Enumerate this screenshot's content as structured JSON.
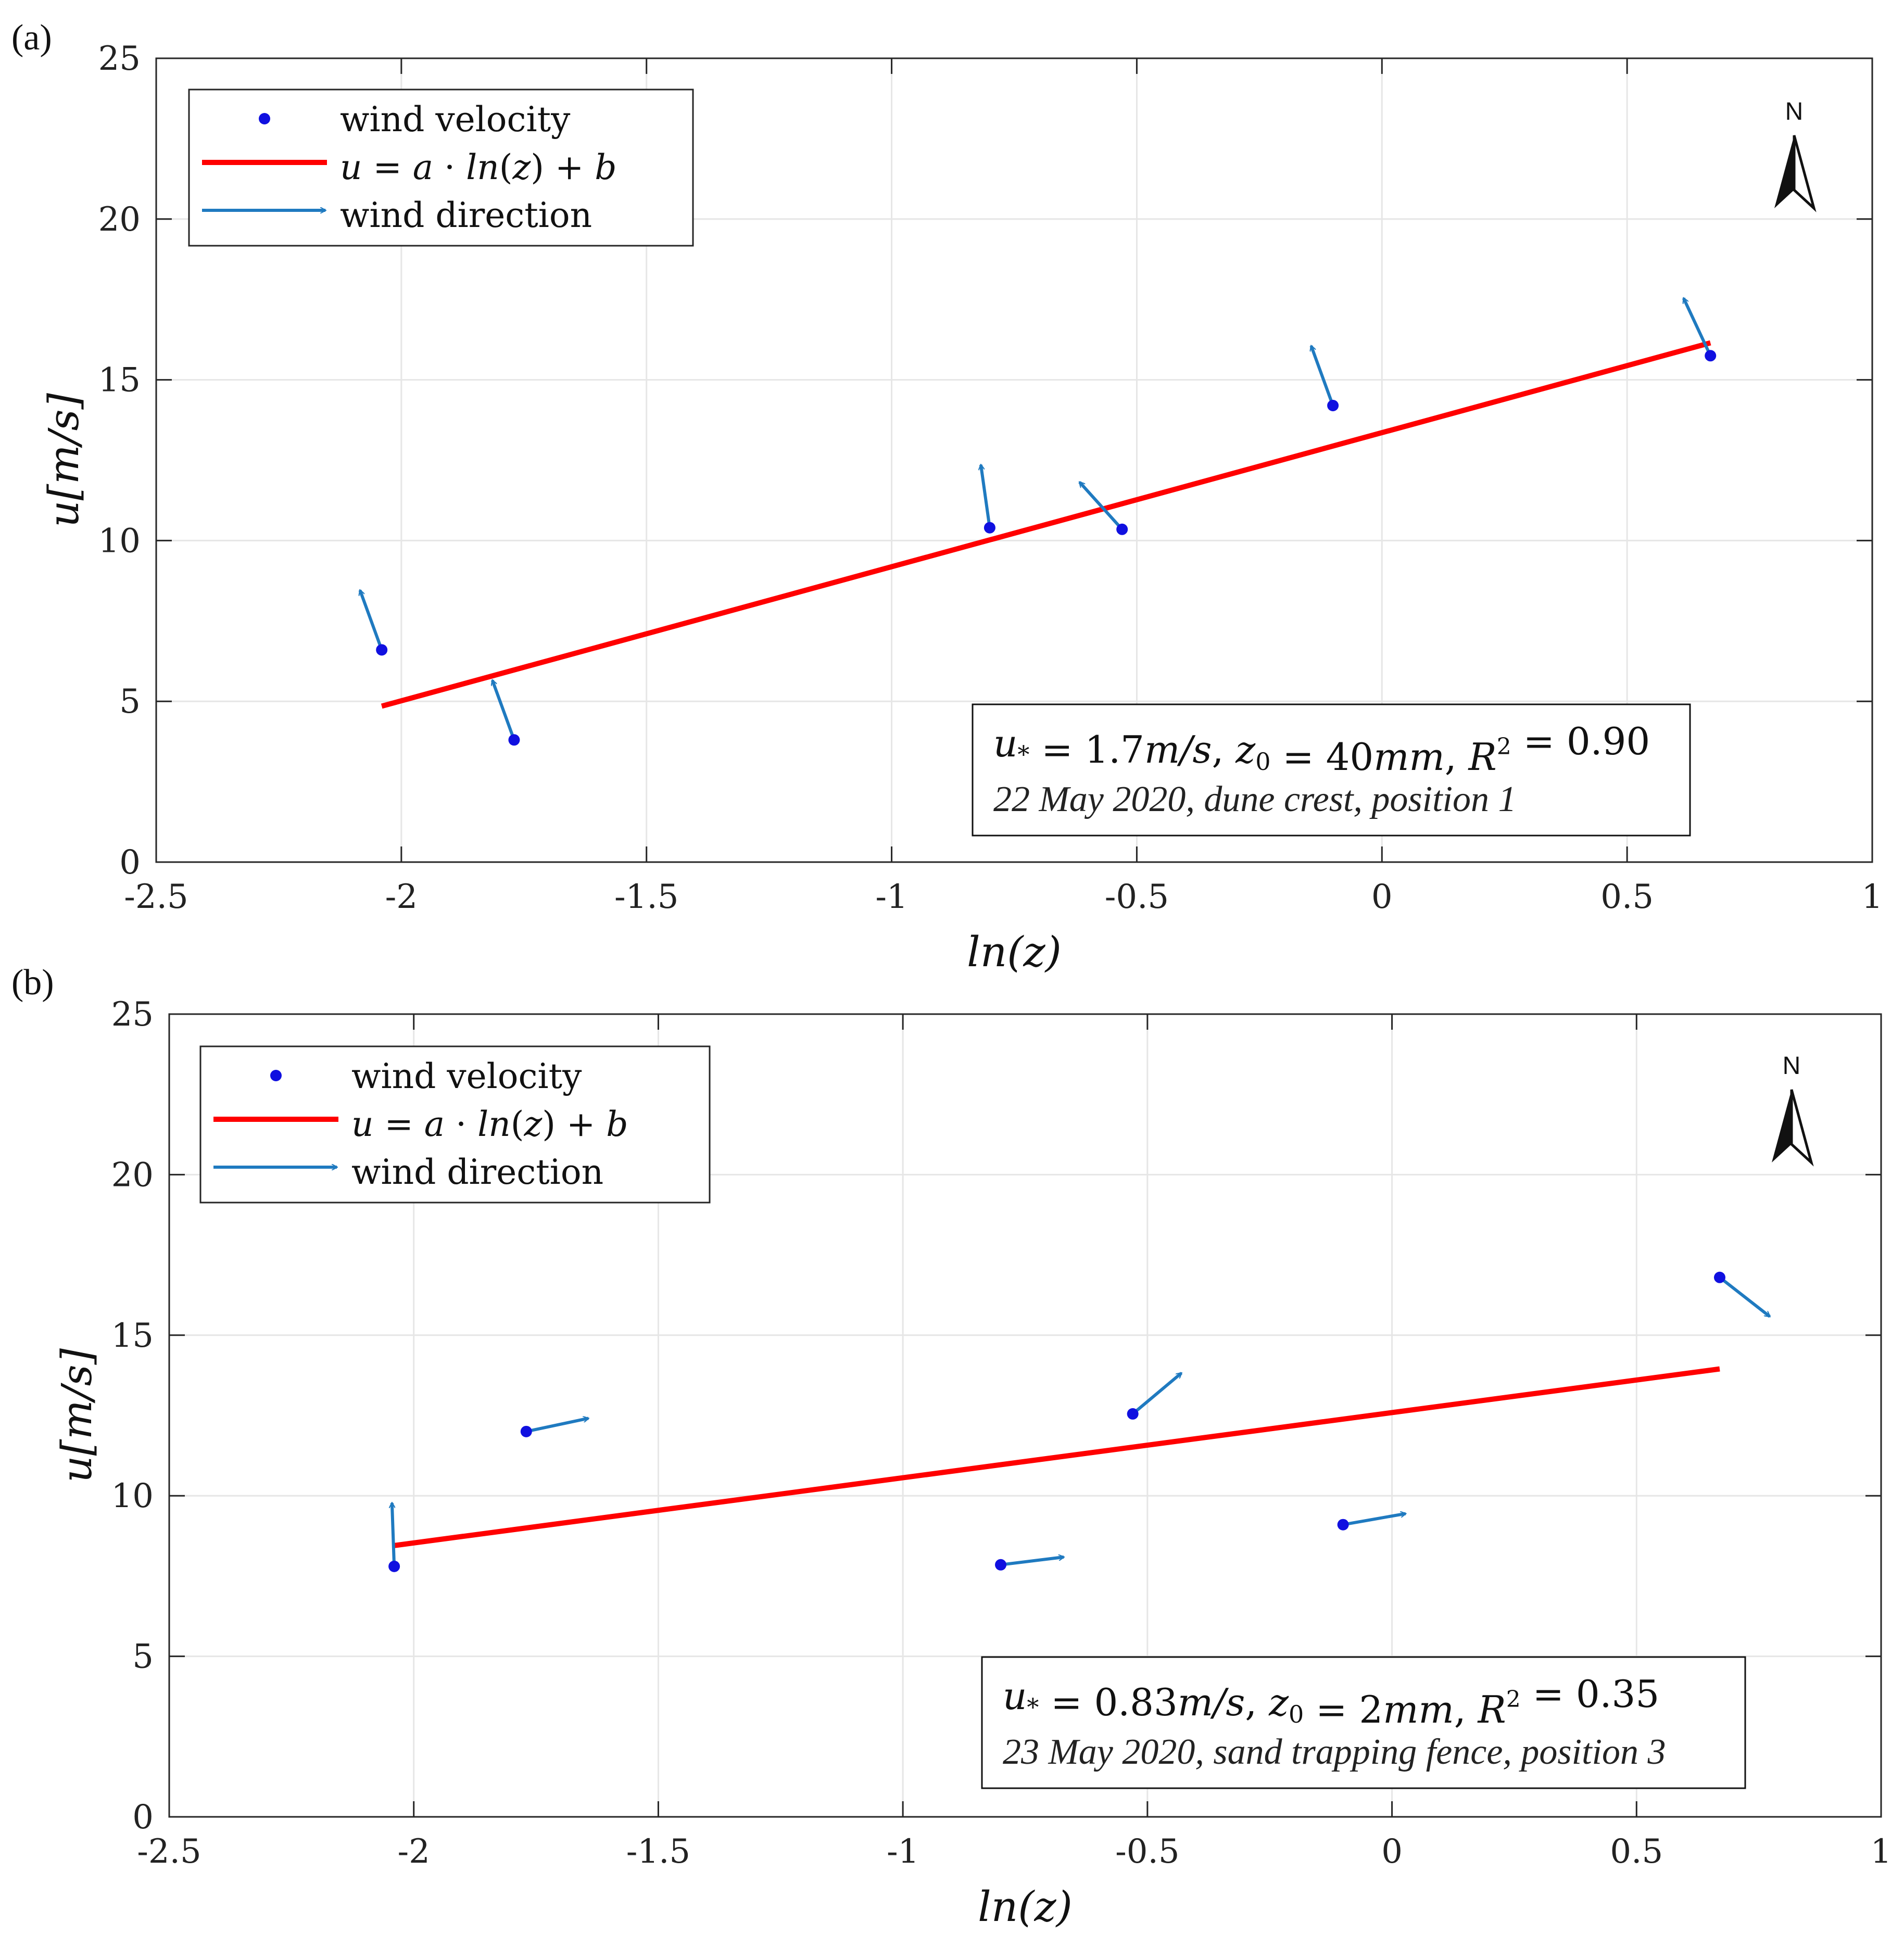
{
  "chart_data": [
    {
      "type": "scatter",
      "panel_label": "(a)",
      "xlabel": "ln(z)",
      "ylabel": "u[m/s]",
      "xlim": [
        -2.5,
        1
      ],
      "ylim": [
        0,
        25
      ],
      "xticks": [
        -2.5,
        -2,
        -1.5,
        -1,
        -0.5,
        0,
        0.5,
        1
      ],
      "xtick_labels": [
        "-2.5",
        "-2",
        "-1.5",
        "-1",
        "-0.5",
        "0",
        "0.5",
        "1"
      ],
      "yticks": [
        0,
        5,
        10,
        15,
        20,
        25
      ],
      "ytick_labels": [
        "0",
        "5",
        "10",
        "15",
        "20",
        "25"
      ],
      "grid": true,
      "legend": {
        "placement": "top-left",
        "entries": [
          "wind velocity",
          "u = a · ln(z) + b",
          "wind direction"
        ]
      },
      "points": [
        {
          "x": -2.04,
          "y": 6.6,
          "dir_deg": 340
        },
        {
          "x": -1.77,
          "y": 3.8,
          "dir_deg": 340
        },
        {
          "x": -0.8,
          "y": 10.4,
          "dir_deg": 352
        },
        {
          "x": -0.53,
          "y": 10.35,
          "dir_deg": 318
        },
        {
          "x": -0.1,
          "y": 14.2,
          "dir_deg": 340
        },
        {
          "x": 0.67,
          "y": 15.75,
          "dir_deg": 335
        }
      ],
      "fit_line": {
        "x": [
          -2.04,
          0.67
        ],
        "y": [
          4.85,
          16.15
        ]
      },
      "annotation": {
        "equation": "u* = 1.7m/s, z0 = 40mm, R² = 0.90",
        "note": "22 May 2020, dune crest, position 1"
      },
      "north_label": "N"
    },
    {
      "type": "scatter",
      "panel_label": "(b)",
      "xlabel": "ln(z)",
      "ylabel": "u[m/s]",
      "xlim": [
        -2.5,
        1
      ],
      "ylim": [
        0,
        25
      ],
      "xticks": [
        -2.5,
        -2,
        -1.5,
        -1,
        -0.5,
        0,
        0.5,
        1
      ],
      "xtick_labels": [
        "-2.5",
        "-2",
        "-1.5",
        "-1",
        "-0.5",
        "0",
        "0.5",
        "1"
      ],
      "yticks": [
        0,
        5,
        10,
        15,
        20,
        25
      ],
      "ytick_labels": [
        "0",
        "5",
        "10",
        "15",
        "20",
        "25"
      ],
      "grid": true,
      "legend": {
        "placement": "top-left",
        "entries": [
          "wind velocity",
          "u = a · ln(z) + b",
          "wind direction"
        ]
      },
      "points": [
        {
          "x": -2.04,
          "y": 7.8,
          "dir_deg": 358
        },
        {
          "x": -1.77,
          "y": 12.0,
          "dir_deg": 78
        },
        {
          "x": -0.8,
          "y": 7.85,
          "dir_deg": 83
        },
        {
          "x": -0.53,
          "y": 12.55,
          "dir_deg": 50
        },
        {
          "x": -0.1,
          "y": 9.1,
          "dir_deg": 80
        },
        {
          "x": 0.67,
          "y": 16.8,
          "dir_deg": 128
        }
      ],
      "fit_line": {
        "x": [
          -2.04,
          0.67
        ],
        "y": [
          8.45,
          13.95
        ]
      },
      "annotation": {
        "equation": "u* = 0.83m/s, z0 = 2mm, R² = 0.35",
        "note": "23 May 2020, sand trapping fence, position 3"
      },
      "north_label": "N"
    }
  ],
  "colors": {
    "points": "#1010e0",
    "fit": "#ff0000",
    "arrows": "#1f7ac0",
    "grid": "#e6e6e6",
    "axis": "#262626"
  }
}
